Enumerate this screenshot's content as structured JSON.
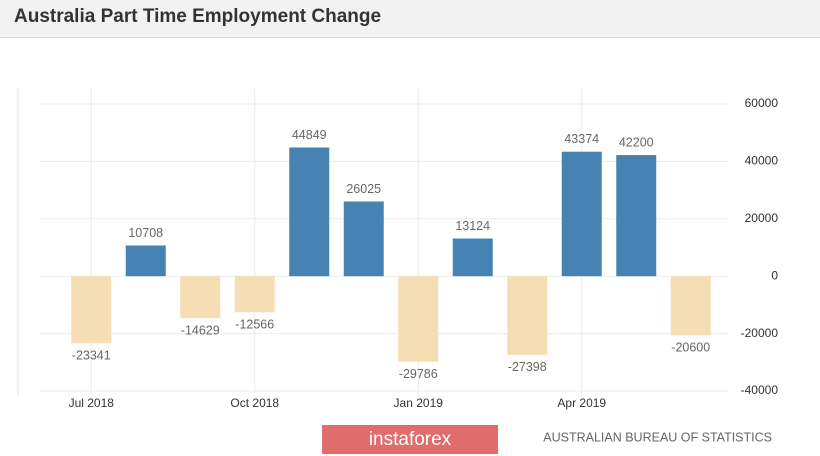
{
  "chart_data": {
    "type": "bar",
    "title": "Australia Part Time Employment Change",
    "categories": [
      "Jul 2018",
      null,
      null,
      "Oct 2018",
      null,
      null,
      "Jan 2019",
      null,
      null,
      "Apr 2019",
      null,
      null
    ],
    "values": [
      -23341,
      10708,
      -14629,
      -12566,
      44849,
      26025,
      -29786,
      13124,
      -27398,
      43374,
      42200,
      -20600
    ],
    "positive_color": "#4682b4",
    "negative_color": "#f5deb3",
    "ylim": [
      -40000,
      60000
    ],
    "yticks": [
      -40000,
      -20000,
      0,
      20000,
      40000,
      60000
    ],
    "grid": true,
    "watermark": "instaforex",
    "source": "AUSTRALIAN BUREAU OF STATISTICS"
  }
}
